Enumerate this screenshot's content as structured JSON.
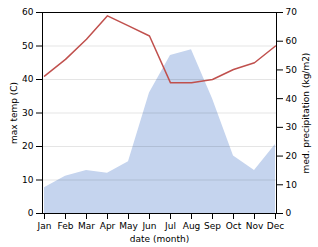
{
  "chart_data": {
    "type": "line",
    "categories": [
      "Jan",
      "Feb",
      "Mar",
      "Apr",
      "May",
      "Jun",
      "Jul",
      "Aug",
      "Sep",
      "Oct",
      "Nov",
      "Dec"
    ],
    "series": [
      {
        "type": "area",
        "axis": "y2",
        "color": "#c5d4ee",
        "values": [
          9,
          13,
          15,
          14,
          18,
          42,
          55,
          57,
          40,
          20,
          15,
          24
        ]
      },
      {
        "type": "line",
        "color": "#c0504d",
        "values": [
          41,
          46,
          52,
          59,
          56,
          53,
          39,
          39,
          40,
          43,
          45,
          50
        ]
      }
    ],
    "xlabel": "date (month)",
    "ylabel": "max temp (C)",
    "y2label": "med. precipitation (kg/m2)",
    "ylim": [
      0,
      60
    ],
    "yticks": [
      0,
      10,
      20,
      30,
      40,
      50,
      60
    ],
    "y2lim": [
      0,
      70
    ],
    "y2ticks": [
      0,
      10,
      20,
      30,
      40,
      50,
      60,
      70
    ],
    "grid": true
  }
}
